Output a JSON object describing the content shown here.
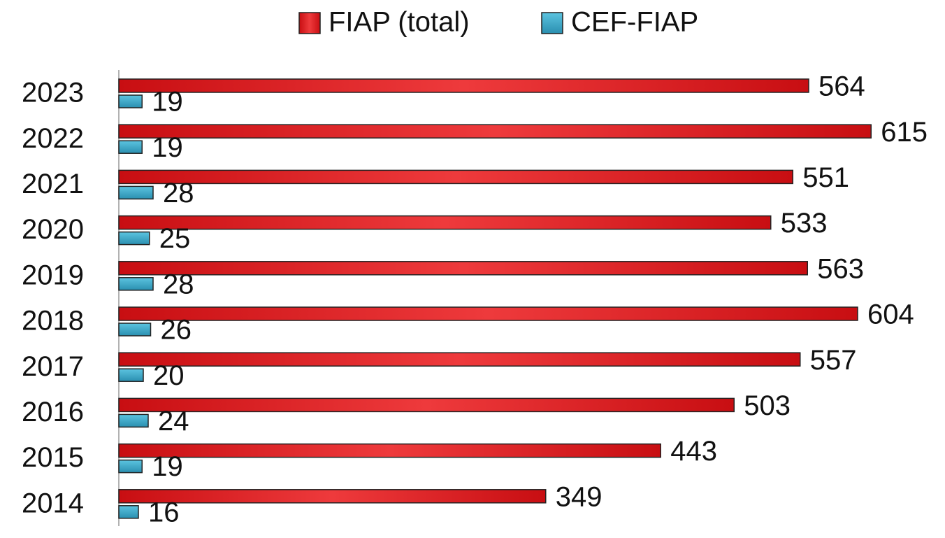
{
  "chart_data": {
    "type": "bar",
    "orientation": "horizontal",
    "categories": [
      "2023",
      "2022",
      "2021",
      "2020",
      "2019",
      "2018",
      "2017",
      "2016",
      "2015",
      "2014"
    ],
    "series": [
      {
        "name": "FIAP (total)",
        "color": "#d81e22",
        "values": [
          564,
          615,
          551,
          533,
          563,
          604,
          557,
          503,
          443,
          349
        ]
      },
      {
        "name": "CEF-FIAP",
        "color": "#31a2c4",
        "values": [
          19,
          19,
          28,
          25,
          28,
          26,
          20,
          24,
          19,
          16
        ]
      }
    ],
    "legend": "top"
  }
}
